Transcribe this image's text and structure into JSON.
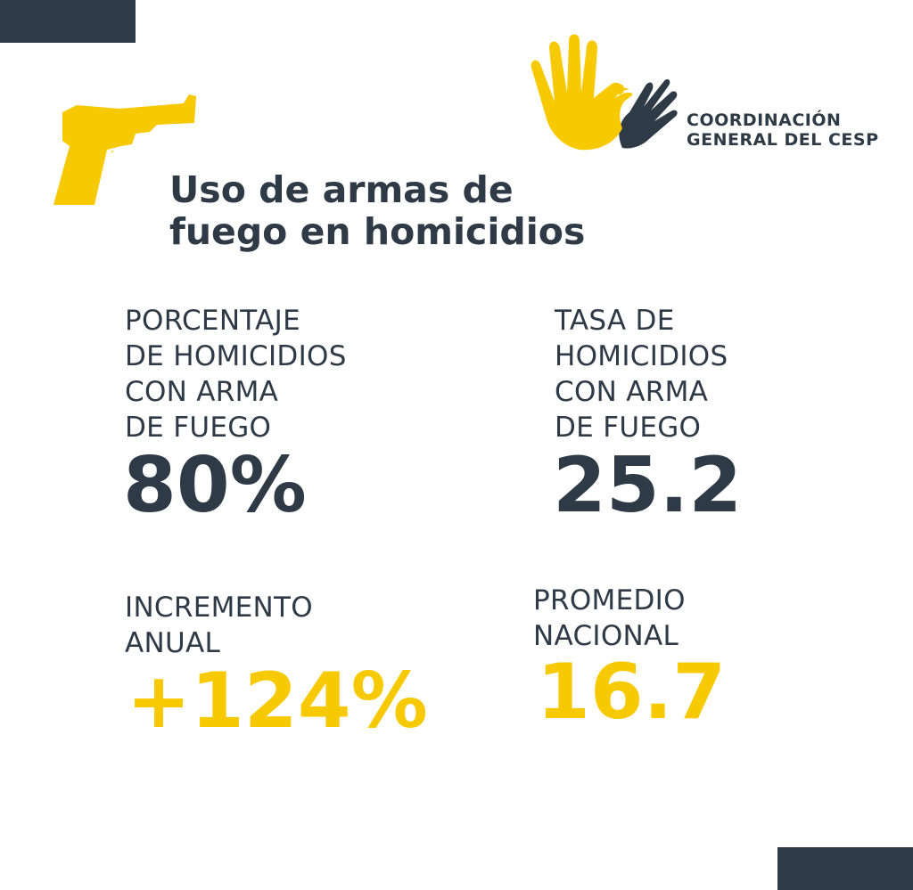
{
  "colors": {
    "dark": "#2e3a45",
    "yellow": "#f7c900",
    "background": "#ffffff"
  },
  "icons": {
    "gun": "revolver-icon",
    "logo": "hands-dove-logo-icon"
  },
  "logo": {
    "line1": "COORDINACIÓN",
    "line2": "GENERAL DEL CESP"
  },
  "title": {
    "line1": "Uso de armas de",
    "line2": "fuego en homicidios"
  },
  "stats": {
    "percentage": {
      "label": [
        "PORCENTAJE",
        "DE HOMICIDIOS",
        "CON ARMA",
        "DE FUEGO"
      ],
      "value": "80%"
    },
    "rate": {
      "label": [
        "TASA DE",
        "HOMICIDIOS",
        "CON ARMA",
        "DE FUEGO"
      ],
      "value": "25.2"
    },
    "increase": {
      "label": [
        "INCREMENTO",
        "ANUAL"
      ],
      "value": "+124%"
    },
    "national": {
      "label": [
        "PROMEDIO",
        "NACIONAL"
      ],
      "value": "16.7"
    }
  }
}
